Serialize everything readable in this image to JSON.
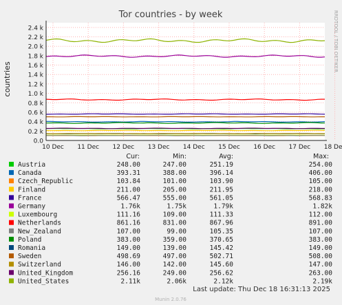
{
  "chart_data": {
    "type": "line",
    "title": "Tor countries - by week",
    "ylabel": "countries",
    "xlabel": "",
    "ylim": [
      0,
      2500
    ],
    "y_ticks": [
      {
        "value": 0,
        "label": "0.0"
      },
      {
        "value": 200,
        "label": "0.2 k"
      },
      {
        "value": 400,
        "label": "0.4 k"
      },
      {
        "value": 600,
        "label": "0.6 k"
      },
      {
        "value": 800,
        "label": "0.8 k"
      },
      {
        "value": 1000,
        "label": "1.0 k"
      },
      {
        "value": 1200,
        "label": "1.2 k"
      },
      {
        "value": 1400,
        "label": "1.4 k"
      },
      {
        "value": 1600,
        "label": "1.6 k"
      },
      {
        "value": 1800,
        "label": "1.8 k"
      },
      {
        "value": 2000,
        "label": "2.0 k"
      },
      {
        "value": 2200,
        "label": "2.2 k"
      },
      {
        "value": 2400,
        "label": "2.4 k"
      }
    ],
    "x_ticks": [
      "10 Dec",
      "11 Dec",
      "12 Dec",
      "13 Dec",
      "14 Dec",
      "15 Dec",
      "16 Dec",
      "17 Dec",
      "18 Dec"
    ],
    "grid": true,
    "legend_position": "below",
    "side_label": "RRDTOOL / TOBI OETIKER",
    "columns": [
      "Cur:",
      "Min:",
      "Avg:",
      "Max:"
    ],
    "series": [
      {
        "name": "Austria",
        "color": "#00cc00",
        "cur": "248.00",
        "min": "247.00",
        "avg": "251.19",
        "max": "254.00",
        "level": 251,
        "spread": 4
      },
      {
        "name": "Canada",
        "color": "#0066b3",
        "cur": "393.31",
        "min": "388.00",
        "avg": "396.14",
        "max": "406.00",
        "level": 396,
        "spread": 8
      },
      {
        "name": "Czech_Republic",
        "color": "#ff8000",
        "cur": "103.84",
        "min": "101.00",
        "avg": "103.90",
        "max": "105.00",
        "level": 104,
        "spread": 2
      },
      {
        "name": "Finland",
        "color": "#ffcc00",
        "cur": "211.00",
        "min": "205.00",
        "avg": "211.95",
        "max": "218.00",
        "level": 212,
        "spread": 5
      },
      {
        "name": "France",
        "color": "#330099",
        "cur": "566.47",
        "min": "555.00",
        "avg": "561.05",
        "max": "568.83",
        "level": 561,
        "spread": 6
      },
      {
        "name": "Germany",
        "color": "#990099",
        "cur": "1.76k",
        "min": "1.75k",
        "avg": "1.79k",
        "max": "1.82k",
        "level": 1790,
        "spread": 25
      },
      {
        "name": "Luxembourg",
        "color": "#ccff00",
        "cur": "111.16",
        "min": "109.00",
        "avg": "111.33",
        "max": "112.00",
        "level": 111,
        "spread": 1
      },
      {
        "name": "Netherlands",
        "color": "#ff0000",
        "cur": "861.16",
        "min": "831.00",
        "avg": "867.96",
        "max": "891.00",
        "level": 868,
        "spread": 15
      },
      {
        "name": "New_Zealand",
        "color": "#808080",
        "cur": "107.00",
        "min": "99.00",
        "avg": "105.35",
        "max": "107.00",
        "level": 105,
        "spread": 3
      },
      {
        "name": "Poland",
        "color": "#008f00",
        "cur": "383.00",
        "min": "359.00",
        "avg": "370.65",
        "max": "383.00",
        "level": 371,
        "spread": 10
      },
      {
        "name": "Romania",
        "color": "#00487d",
        "cur": "149.00",
        "min": "139.00",
        "avg": "145.42",
        "max": "149.00",
        "level": 145,
        "spread": 4
      },
      {
        "name": "Sweden",
        "color": "#b35a00",
        "cur": "498.69",
        "min": "497.00",
        "avg": "502.71",
        "max": "508.00",
        "level": 503,
        "spread": 4
      },
      {
        "name": "Switzerland",
        "color": "#b38f00",
        "cur": "146.00",
        "min": "142.00",
        "avg": "145.60",
        "max": "147.00",
        "level": 146,
        "spread": 2
      },
      {
        "name": "United_Kingdom",
        "color": "#6b006b",
        "cur": "256.16",
        "min": "249.00",
        "avg": "256.62",
        "max": "263.00",
        "level": 257,
        "spread": 5
      },
      {
        "name": "United_States",
        "color": "#8fb300",
        "cur": "2.11k",
        "min": "2.06k",
        "avg": "2.12k",
        "max": "2.19k",
        "level": 2120,
        "spread": 40
      }
    ],
    "last_update": "Last update: Thu Dec 18 16:31:13 2025",
    "footer": "Munin 2.0.76"
  }
}
